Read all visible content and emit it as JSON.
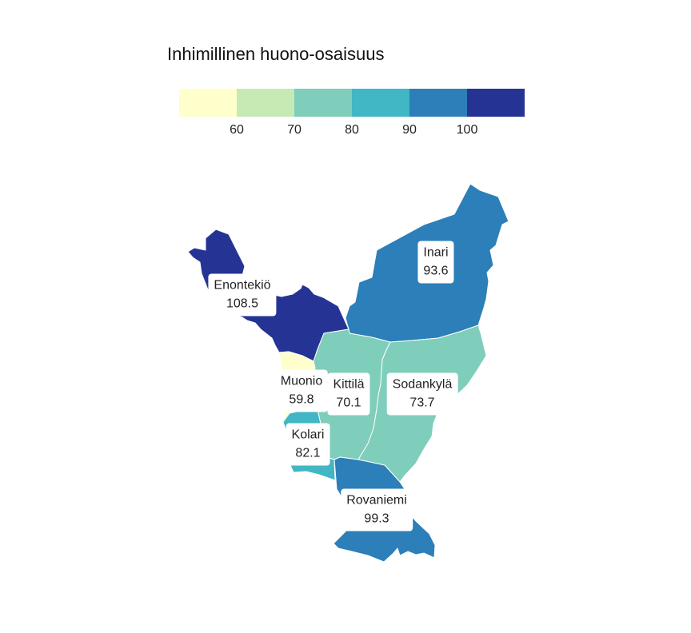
{
  "legend": {
    "title": "Inhimillinen huono-osaisuus",
    "colors": [
      "#ffffcc",
      "#c7e9b4",
      "#7fcdbb",
      "#41b6c4",
      "#2c7fb8",
      "#253494"
    ],
    "ticks": [
      "60",
      "70",
      "80",
      "90",
      "100"
    ]
  },
  "regions": [
    {
      "name": "Enontekiö",
      "value": "108.5",
      "color": "#253494"
    },
    {
      "name": "Inari",
      "value": "93.6",
      "color": "#2c7fb8"
    },
    {
      "name": "Muonio",
      "value": "59.8",
      "color": "#ffffcc"
    },
    {
      "name": "Kittilä",
      "value": "70.1",
      "color": "#7fcdbb"
    },
    {
      "name": "Sodankylä",
      "value": "73.7",
      "color": "#7fcdbb"
    },
    {
      "name": "Kolari",
      "value": "82.1",
      "color": "#41b6c4"
    },
    {
      "name": "Rovaniemi",
      "value": "99.3",
      "color": "#2c7fb8"
    }
  ]
}
